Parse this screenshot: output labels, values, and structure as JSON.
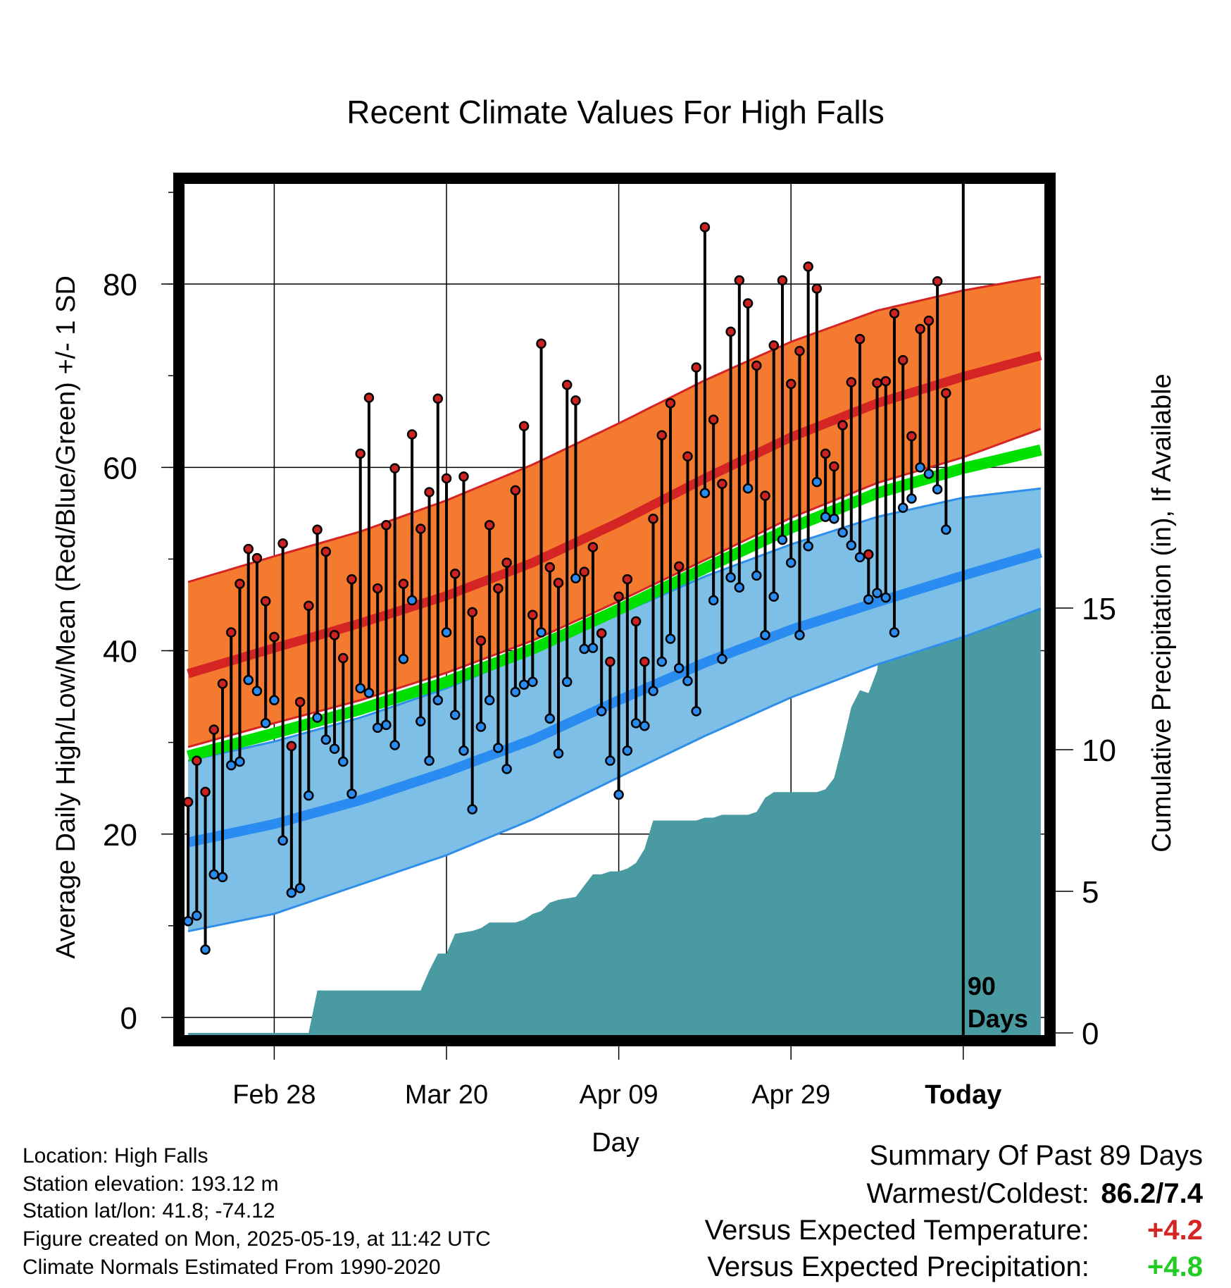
{
  "chart_data": {
    "type": "line",
    "title": "Recent Climate Values For High Falls",
    "xlabel": "Day",
    "ylabel": "Average Daily High/Low/Mean (Red/Blue/Green) +/- 1 SD",
    "y2label": "Cumulative Precipitation (in), If Available",
    "x_ticks": [
      "Feb 28",
      "Mar 20",
      "Apr 09",
      "Apr 29",
      "Today"
    ],
    "x_tick_days": [
      10,
      30,
      50,
      70,
      90
    ],
    "today_day": 90,
    "today_label_1": "90",
    "today_label_2": "Days",
    "xlim": [
      -0.5,
      99.5
    ],
    "ylim": [
      -2,
      91
    ],
    "y_ticks": [
      0,
      20,
      40,
      60,
      80
    ],
    "y2lim": [
      -0.1,
      30
    ],
    "y2_ticks": [
      0,
      5,
      10,
      15
    ],
    "grid": true,
    "colors": {
      "high_band": "#f47a30",
      "high_mean": "#d42424",
      "low_band": "#7dbfe6",
      "low_mean": "#2a8cf0",
      "low_band_edge": "#2f8fe8",
      "mean": "#00e000",
      "precip": "#4a9aa2",
      "high_marker": "#cc2222",
      "low_marker": "#2a8cf0"
    },
    "normal_days": [
      0,
      10,
      20,
      30,
      40,
      50,
      60,
      70,
      80,
      90,
      99
    ],
    "normal_high": [
      37.5,
      40.3,
      43.0,
      46.0,
      49.6,
      54.0,
      58.8,
      63.3,
      67.0,
      69.9,
      72.2
    ],
    "normal_high_upper": [
      47.5,
      50.3,
      53.0,
      56.4,
      60.3,
      64.8,
      69.5,
      73.7,
      77.1,
      79.3,
      80.8
    ],
    "normal_high_lower": [
      29.5,
      32.1,
      34.6,
      37.6,
      41.1,
      45.4,
      49.9,
      54.5,
      58.3,
      61.1,
      64.2
    ],
    "normal_mean": [
      28.5,
      31.0,
      33.6,
      36.6,
      40.2,
      44.5,
      49.0,
      53.4,
      57.2,
      59.9,
      61.9
    ],
    "normal_low": [
      19.1,
      21.1,
      23.7,
      26.8,
      30.3,
      34.6,
      38.7,
      42.3,
      45.3,
      48.2,
      50.7
    ],
    "normal_low_upper": [
      28.0,
      30.1,
      32.7,
      35.9,
      39.8,
      44.0,
      48.1,
      51.6,
      54.6,
      56.7,
      57.7
    ],
    "normal_low_lower": [
      9.4,
      11.3,
      14.5,
      17.7,
      21.6,
      26.2,
      30.7,
      34.9,
      38.5,
      41.5,
      44.6
    ],
    "series": [
      {
        "name": "Daily High",
        "values": [
          23.5,
          28.0,
          24.6,
          31.4,
          36.4,
          42.0,
          47.3,
          51.1,
          50.1,
          45.4,
          41.5,
          51.7,
          29.6,
          34.4,
          44.9,
          53.2,
          50.8,
          41.7,
          39.2,
          47.8,
          61.5,
          67.6,
          46.8,
          53.7,
          59.9,
          47.3,
          63.6,
          53.3,
          57.3,
          67.5,
          58.8,
          48.4,
          59.0,
          44.2,
          41.1,
          53.7,
          46.8,
          49.6,
          57.5,
          64.5,
          43.9,
          73.5,
          49.1,
          47.4,
          69.0,
          67.3,
          48.6,
          51.3,
          41.9,
          38.8,
          45.9,
          47.8,
          43.2,
          38.8,
          54.4,
          63.5,
          67.0,
          49.2,
          61.2,
          70.9,
          86.2,
          65.2,
          58.2,
          74.8,
          80.4,
          77.9,
          71.1,
          56.9,
          73.3,
          80.4,
          69.1,
          72.7,
          81.9,
          79.5,
          61.5,
          60.1,
          64.6,
          69.3,
          74.0,
          50.5,
          69.2,
          69.4,
          76.8,
          71.7,
          63.4,
          75.1,
          76.0,
          80.3,
          68.1
        ]
      },
      {
        "name": "Daily Low",
        "values": [
          10.5,
          11.1,
          7.4,
          15.6,
          15.3,
          27.5,
          27.9,
          36.8,
          35.6,
          32.1,
          34.6,
          19.3,
          13.6,
          14.1,
          24.2,
          32.7,
          30.3,
          29.3,
          27.9,
          24.4,
          35.9,
          35.4,
          31.6,
          31.9,
          29.7,
          39.1,
          45.5,
          32.3,
          28.0,
          34.6,
          42.0,
          33.0,
          29.1,
          22.7,
          31.7,
          34.6,
          29.4,
          27.1,
          35.5,
          36.3,
          36.6,
          42.0,
          32.6,
          28.8,
          36.6,
          47.9,
          40.2,
          40.3,
          33.4,
          28.0,
          24.3,
          29.1,
          32.1,
          31.8,
          35.6,
          38.8,
          41.3,
          38.1,
          36.7,
          33.4,
          57.2,
          45.5,
          39.1,
          48.0,
          46.9,
          57.7,
          48.2,
          41.7,
          45.9,
          52.1,
          49.6,
          41.7,
          51.4,
          58.4,
          54.6,
          54.4,
          52.9,
          51.5,
          50.2,
          45.6,
          46.3,
          45.8,
          42.0,
          55.6,
          56.6,
          60.0,
          59.3,
          57.6,
          53.2
        ]
      }
    ],
    "precip_days": [
      0,
      14,
      15,
      27,
      28,
      29,
      30,
      31,
      33,
      34,
      35,
      38,
      39,
      40,
      41,
      42,
      43,
      45,
      46,
      47,
      48,
      49,
      50,
      51,
      52,
      53,
      54,
      57,
      58,
      59,
      60,
      61,
      62,
      64,
      65,
      66,
      67,
      68,
      70,
      71,
      72,
      73,
      74,
      75,
      76,
      77,
      78,
      79,
      80,
      81,
      82,
      83,
      84,
      85,
      86,
      89,
      90,
      99
    ],
    "precip_values": [
      0.0,
      0.0,
      1.5,
      1.5,
      2.2,
      2.8,
      2.8,
      3.5,
      3.6,
      3.7,
      3.9,
      3.9,
      4.0,
      4.2,
      4.3,
      4.6,
      4.7,
      4.8,
      5.2,
      5.6,
      5.6,
      5.7,
      5.7,
      5.8,
      6.0,
      6.5,
      7.5,
      7.5,
      7.5,
      7.5,
      7.6,
      7.6,
      7.7,
      7.7,
      7.7,
      7.8,
      8.3,
      8.5,
      8.5,
      8.5,
      8.5,
      8.5,
      8.6,
      9.0,
      10.2,
      11.5,
      12.1,
      12.0,
      12.8,
      15.0,
      15.1,
      15.0,
      15.2,
      15.7,
      15.7,
      15.8,
      15.8,
      15.8
    ]
  },
  "info": {
    "location": "Location: High Falls",
    "elevation": "Station elevation: 193.12 m",
    "latlon": "Station lat/lon: 41.8; -74.12",
    "created": "Figure created on Mon, 2025-05-19, at 11:42 UTC",
    "normals": "Climate Normals Estimated From 1990-2020"
  },
  "summary": {
    "heading": "Summary Of Past 89 Days",
    "warm_cold_label": "Warmest/Coldest:",
    "warm_cold_value": "86.2/7.4",
    "temp_label": "Versus Expected Temperature:",
    "temp_value": "+4.2",
    "temp_color": "#d42424",
    "precip_label": "Versus Expected Precipitation:",
    "precip_value": "+4.8",
    "precip_color": "#22cc22"
  }
}
